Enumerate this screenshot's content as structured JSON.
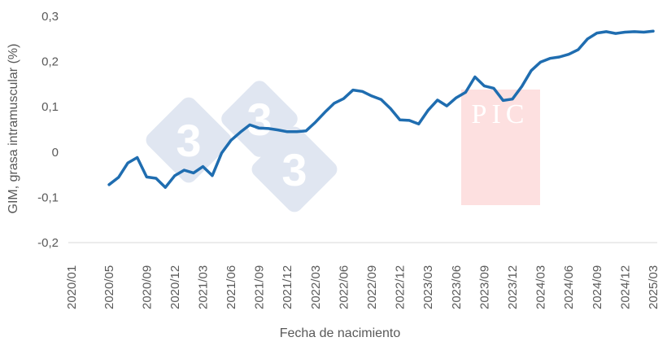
{
  "chart_data": {
    "type": "line",
    "title": "",
    "xlabel": "Fecha de nacimiento",
    "ylabel": "GIM, grasa intramuscular (%)",
    "ylim": [
      -0.2,
      0.3
    ],
    "yticks": [
      "-0,2",
      "-0,1",
      "0",
      "0,1",
      "0,2",
      "0,3"
    ],
    "x_tick_labels": [
      "2020/01",
      "2020/05",
      "2020/09",
      "2020/12",
      "2021/03",
      "2021/06",
      "2021/09",
      "2021/12",
      "2022/03",
      "2022/06",
      "2022/09",
      "2022/12",
      "2023/03",
      "2023/06",
      "2023/09",
      "2023/12",
      "2024/03",
      "2024/06",
      "2024/09",
      "2024/12",
      "2025/03"
    ],
    "grid": false,
    "series_color": "#1f6db0",
    "series": [
      {
        "x": [
          "2020/05",
          "2020/06",
          "2020/07",
          "2020/08",
          "2020/09",
          "2020/10",
          "2020/11",
          "2020/12",
          "2021/01",
          "2021/02",
          "2021/03",
          "2021/04",
          "2021/05",
          "2021/06",
          "2021/07",
          "2021/08",
          "2021/09",
          "2021/10",
          "2021/11",
          "2021/12",
          "2022/01",
          "2022/02",
          "2022/03",
          "2022/04",
          "2022/05",
          "2022/06",
          "2022/07",
          "2022/08",
          "2022/09",
          "2022/10",
          "2022/11",
          "2022/12",
          "2023/01",
          "2023/02",
          "2023/03",
          "2023/04",
          "2023/05",
          "2023/06",
          "2023/07",
          "2023/08",
          "2023/09",
          "2023/10",
          "2023/11",
          "2023/12",
          "2024/01",
          "2024/02",
          "2024/03",
          "2024/04",
          "2024/05",
          "2024/06",
          "2024/07",
          "2024/08",
          "2024/09",
          "2024/10",
          "2024/11",
          "2024/12",
          "2025/01",
          "2025/02",
          "2025/03"
        ],
        "values": [
          -0.072,
          -0.056,
          -0.024,
          -0.012,
          -0.055,
          -0.058,
          -0.078,
          -0.052,
          -0.04,
          -0.046,
          -0.032,
          -0.052,
          -0.002,
          0.026,
          0.044,
          0.06,
          0.053,
          0.052,
          0.049,
          0.045,
          0.045,
          0.047,
          0.066,
          0.088,
          0.108,
          0.118,
          0.137,
          0.134,
          0.124,
          0.116,
          0.096,
          0.071,
          0.07,
          0.062,
          0.092,
          0.115,
          0.102,
          0.12,
          0.132,
          0.166,
          0.146,
          0.141,
          0.114,
          0.117,
          0.145,
          0.18,
          0.199,
          0.207,
          0.21,
          0.216,
          0.226,
          0.25,
          0.263,
          0.266,
          0.262,
          0.265,
          0.266,
          0.265,
          0.267
        ]
      }
    ]
  },
  "watermarks": {
    "logo_digits": [
      "3",
      "3",
      "3"
    ],
    "pic_text": "PIC"
  }
}
